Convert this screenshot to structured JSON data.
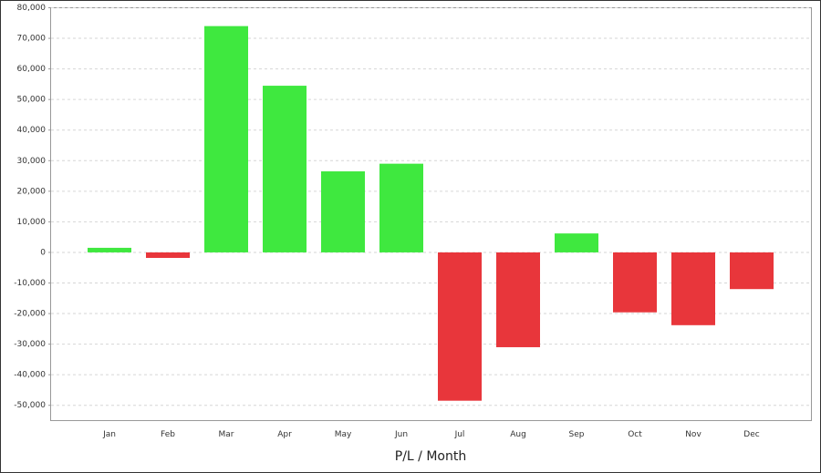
{
  "chart_data": {
    "type": "bar",
    "x_label": "P/L / Month",
    "categories": [
      "Jan",
      "Feb",
      "Mar",
      "Apr",
      "May",
      "Jun",
      "Jul",
      "Aug",
      "Sep",
      "Oct",
      "Nov",
      "Dec"
    ],
    "values": [
      1500,
      -1800,
      74000,
      54500,
      26500,
      29000,
      -48500,
      -31000,
      6200,
      -19600,
      -23800,
      -12000
    ],
    "positive_color": "#3fe83f",
    "negative_color": "#e8363b",
    "ylim": [
      -55000,
      80000
    ],
    "yticks": [
      {
        "value": -50000,
        "label": "-50,000"
      },
      {
        "value": -40000,
        "label": "-40,000"
      },
      {
        "value": -30000,
        "label": "-30,000"
      },
      {
        "value": -20000,
        "label": "-20,000"
      },
      {
        "value": -10000,
        "label": "-10,000"
      },
      0,
      {
        "value": 10000,
        "label": "10,000"
      },
      {
        "value": 20000,
        "label": "20,000"
      },
      {
        "value": 30000,
        "label": "30,000"
      },
      {
        "value": 40000,
        "label": "40,000"
      },
      {
        "value": 50000,
        "label": "50,000"
      },
      {
        "value": 60000,
        "label": "60,000"
      },
      {
        "value": 70000,
        "label": "70,000"
      },
      {
        "value": 80000,
        "label": "80,000"
      }
    ],
    "grid": true
  }
}
